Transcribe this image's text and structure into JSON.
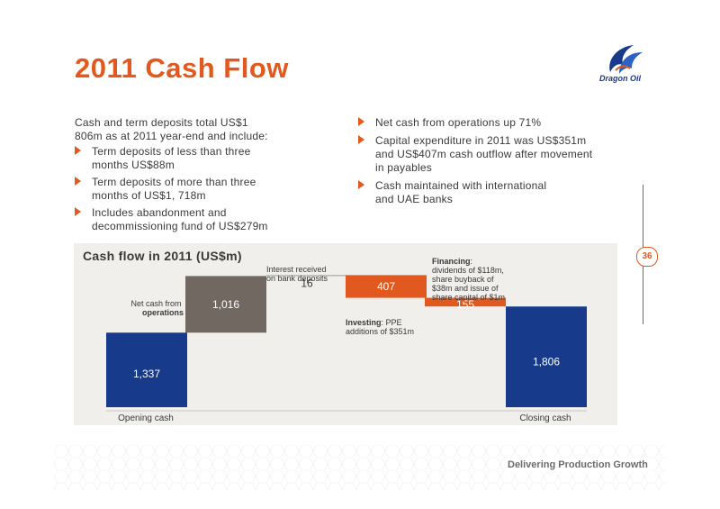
{
  "page": {
    "title": "2011 Cash Flow",
    "logo_text": "Dragon Oil",
    "page_number": "36",
    "footer": "Delivering Production Growth"
  },
  "left_column": {
    "intro_line1": "Cash and term deposits total US$1",
    "intro_line2": "806m as at 2011 year-end and include:",
    "bullets": [
      {
        "line1": "Term deposits of less than three",
        "line2": "months US$88m"
      },
      {
        "line1": "Term deposits of more than three",
        "line2": "months of US$1, 718m"
      },
      {
        "line1": "Includes abandonment and",
        "line2": "decommissioning fund of US$279m"
      }
    ]
  },
  "right_column": {
    "bullets": [
      {
        "line1": "Net cash from operations up 71%",
        "line2": "",
        "line3": ""
      },
      {
        "line1": "Capital expenditure in 2011 was US$351m",
        "line2": "and US$407m cash outflow after movement",
        "line3": "in payables"
      },
      {
        "line1": "Cash maintained with international",
        "line2": "and UAE banks",
        "line3": ""
      }
    ]
  },
  "chart_data": {
    "type": "bar",
    "subtype": "waterfall",
    "title": "Cash flow in 2011 (US$m)",
    "ylim": [
      0,
      2860
    ],
    "steps": [
      {
        "key": "opening",
        "label": "Opening cash",
        "value": 1337,
        "display": "1,337",
        "kind": "total",
        "color": "#173a8a"
      },
      {
        "key": "operations",
        "label_plain": "Net cash from",
        "label_bold": "operations",
        "value": 1016,
        "display": "1,016",
        "kind": "increase",
        "color": "#726862"
      },
      {
        "key": "interest",
        "label_plain_1": "Interest received",
        "label_plain_2": "on bank deposits",
        "value": 16,
        "display": "16",
        "kind": "increase",
        "color": "#9a9a9a"
      },
      {
        "key": "investing",
        "label_bold": "Investing",
        "label_plain_1": ": PPE",
        "label_plain_2": "additions of $351m",
        "value": -407,
        "display": "407",
        "kind": "decrease",
        "color": "#e2591f"
      },
      {
        "key": "financing",
        "label_bold": "Financing",
        "label_plain_1": ":",
        "label_plain_2": "dividends of $118m,",
        "label_plain_3": "share buyback of",
        "label_plain_4": "$38m and issue of",
        "label_plain_5": "share capital of $1m",
        "value": -155,
        "display": "155",
        "kind": "decrease",
        "color": "#e2591f"
      },
      {
        "key": "closing",
        "label": "Closing cash",
        "value": 1806,
        "display": "1,806",
        "kind": "total",
        "color": "#173a8a"
      }
    ]
  }
}
